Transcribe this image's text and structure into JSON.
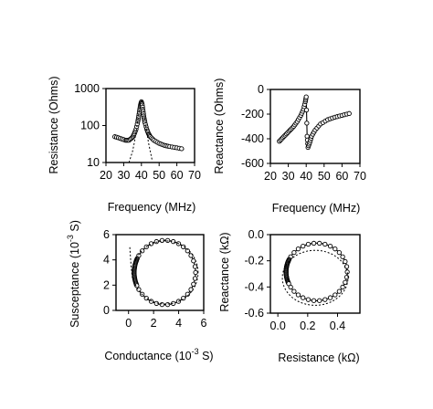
{
  "chart_data": [
    {
      "type": "line",
      "xlabel": "Frequency (MHz)",
      "ylabel": "Resistance (Ohms)",
      "xlim": [
        20,
        70
      ],
      "ylim": [
        10,
        1000
      ],
      "yscale": "log",
      "xticks": [
        "20",
        "30",
        "40",
        "50",
        "60",
        "70"
      ],
      "yticks": [
        "10",
        "100",
        "1000"
      ],
      "grid": false,
      "series": [
        {
          "style": "line with open circle markers",
          "x": [
            25,
            28,
            31,
            33,
            35,
            36,
            37,
            38,
            38.5,
            39,
            39.5,
            40,
            40.5,
            41,
            41.5,
            42,
            43,
            44,
            45,
            47,
            50,
            53,
            56,
            60,
            64
          ],
          "y": [
            50,
            45,
            40,
            40,
            48,
            60,
            80,
            130,
            180,
            260,
            360,
            440,
            360,
            240,
            160,
            120,
            80,
            60,
            50,
            40,
            33,
            29,
            27,
            25,
            23
          ]
        },
        {
          "style": "dotted",
          "x": [
            33,
            35,
            36,
            37,
            38,
            39,
            39.5,
            40,
            40.5,
            41,
            42,
            43,
            44,
            45,
            46
          ],
          "y": [
            10,
            20,
            34,
            68,
            140,
            300,
            420,
            460,
            420,
            300,
            140,
            68,
            34,
            20,
            12
          ]
        }
      ]
    },
    {
      "type": "line",
      "xlabel": "Frequency (MHz)",
      "ylabel": "Reactance (Ohms)",
      "xlim": [
        20,
        70
      ],
      "ylim": [
        -600,
        0
      ],
      "xticks": [
        "20",
        "30",
        "40",
        "50",
        "60",
        "70"
      ],
      "yticks": [
        "0",
        "-200",
        "-400",
        "-600"
      ],
      "grid": false,
      "series": [
        {
          "style": "line with open circle markers",
          "x": [
            25,
            27,
            29,
            31,
            33,
            35,
            37,
            38.5,
            39.5,
            40,
            40.5,
            41,
            42,
            43,
            45,
            48,
            52,
            56,
            60,
            64
          ],
          "y": [
            -420,
            -390,
            -360,
            -330,
            -300,
            -260,
            -210,
            -160,
            -100,
            -60,
            -380,
            -470,
            -430,
            -380,
            -330,
            -280,
            -245,
            -225,
            -210,
            -195
          ]
        }
      ]
    },
    {
      "type": "scatter",
      "xlabel": {
        "main": "Conductance (10",
        "exponent": "-3",
        "unit": " S)"
      },
      "ylabel": {
        "main": "Susceptance (10",
        "exponent": "-3",
        "unit": " S)"
      },
      "xlim": [
        -1,
        6
      ],
      "ylim": [
        0,
        6
      ],
      "xticks": [
        "0",
        "2",
        "4",
        "6"
      ],
      "yticks": [
        "0",
        "2",
        "4",
        "6"
      ],
      "grid": false,
      "series": [
        {
          "style": "open circle markers, dense cluster near x=0.4",
          "circle": {
            "center": [
              2.9,
              3.0
            ],
            "radius": [
              2.45,
              2.55
            ]
          }
        },
        {
          "style": "dotted",
          "circle": {
            "center": [
              2.95,
              3.0
            ],
            "radius": [
              2.6,
              2.5
            ]
          },
          "tail": {
            "x": [
              0.1,
              0.2,
              0.3
            ],
            "y": [
              5.0,
              3.5,
              2.6
            ]
          }
        }
      ]
    },
    {
      "type": "scatter",
      "xlabel": "Resistance (kΩ)",
      "ylabel": "Reactance (kΩ)",
      "xlim": [
        -0.05,
        0.55
      ],
      "ylim": [
        -0.6,
        0
      ],
      "xticks": [
        "0.0",
        "0.2",
        "0.4"
      ],
      "yticks": [
        "0.0",
        "-0.2",
        "-0.4",
        "-0.6"
      ],
      "grid": false,
      "series": [
        {
          "style": "open circle markers, dense cluster near x=0.04",
          "ellipse": {
            "center": [
              0.26,
              -0.285
            ],
            "radius": [
              0.205,
              0.22
            ]
          }
        },
        {
          "style": "dotted",
          "ellipse": {
            "center": [
              0.25,
              -0.33
            ],
            "radius": [
              0.22,
              0.21
            ]
          }
        }
      ]
    }
  ]
}
